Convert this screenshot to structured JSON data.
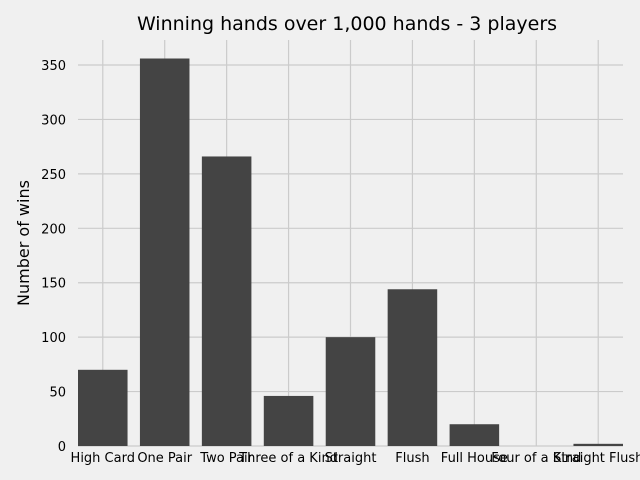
{
  "chart_data": {
    "type": "bar",
    "title": "Winning hands over 1,000 hands - 3 players",
    "xlabel": "",
    "ylabel": "Number of wins",
    "categories": [
      "High Card",
      "One Pair",
      "Two Pair",
      "Three of a Kind",
      "Straight",
      "Flush",
      "Full House",
      "Four of a Kind",
      "Straight Flush"
    ],
    "values": [
      70,
      356,
      266,
      46,
      100,
      144,
      20,
      0,
      2
    ],
    "yticks": [
      0,
      50,
      100,
      150,
      200,
      250,
      300,
      350
    ],
    "ylim": [
      0,
      373
    ],
    "grid": true,
    "legend": "none",
    "colors": {
      "bar": "#444444",
      "background": "#f0f0f0",
      "grid": "#cbcbcb"
    }
  }
}
